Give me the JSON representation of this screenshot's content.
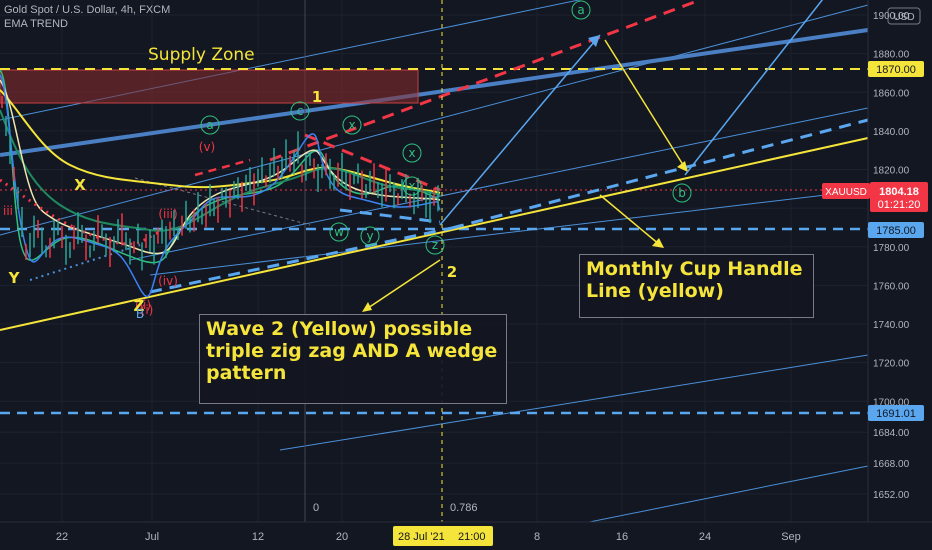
{
  "header": {
    "title": "Gold Spot / U.S. Dollar, 4h, FXCM",
    "indicator": "EMA TREND",
    "currency_badge": "USD"
  },
  "colors": {
    "background": "#131722",
    "yellow": "#f5e43a",
    "blue": "#4a90d9",
    "light_blue": "#5aa7ef",
    "red": "#f23645",
    "supply_zone": "#8b2b2b",
    "green": "#1f8a5e"
  },
  "annotations": {
    "supply_zone": "Supply Zone",
    "wave2_note": "Wave 2 (Yellow) possible triple zig zag AND A wedge pattern",
    "cup_handle_note": "Monthly Cup Handle Line (yellow)",
    "fib_zero": "0",
    "fib_786": "0.786"
  },
  "wave_labels": [
    {
      "text": "a",
      "kind": "circle"
    },
    {
      "text": "c",
      "kind": "circle"
    },
    {
      "text": "x",
      "kind": "circle"
    },
    {
      "text": "x",
      "kind": "circle"
    },
    {
      "text": "a",
      "kind": "circle"
    },
    {
      "text": "w",
      "kind": "circle"
    },
    {
      "text": "y",
      "kind": "circle"
    },
    {
      "text": "z",
      "kind": "circle"
    },
    {
      "text": "x",
      "kind": "circle"
    },
    {
      "text": "b",
      "kind": "circle"
    },
    {
      "text": "1",
      "kind": "yellow"
    },
    {
      "text": "2",
      "kind": "yellow"
    },
    {
      "text": "X",
      "kind": "yellow"
    },
    {
      "text": "Y",
      "kind": "yellow"
    },
    {
      "text": "(v)",
      "kind": "red"
    },
    {
      "text": "(iii)",
      "kind": "red"
    },
    {
      "text": "(iv)",
      "kind": "red"
    },
    {
      "text": "(ii)",
      "kind": "red"
    },
    {
      "text": "iii",
      "kind": "red"
    },
    {
      "text": "(i)",
      "kind": "red"
    },
    {
      "text": "Z",
      "kind": "yellow"
    },
    {
      "text": "B",
      "kind": "blue"
    }
  ],
  "price_badges": {
    "current": {
      "label": "XAUUSD",
      "price": "1804.18",
      "countdown": "01:21:20"
    },
    "level_1870": "1870.00",
    "level_1785": "1785.00",
    "level_1691": "1691.01"
  },
  "crosshair_date": "28 Jul '21",
  "crosshair_time": "21:00",
  "chart_data": {
    "type": "line",
    "symbol": "XAUUSD",
    "timeframe": "4h",
    "y_ticks": [
      "1900.00",
      "1880.00",
      "1860.00",
      "1840.00",
      "1820.00",
      "1800.00",
      "1780.00",
      "1760.00",
      "1740.00",
      "1720.00",
      "1700.00",
      "1684.00",
      "1668.00",
      "1652.00"
    ],
    "x_ticks": [
      "22",
      "Jul",
      "12",
      "20",
      "8",
      "16",
      "24",
      "Sep"
    ],
    "horizontal_levels": [
      1870.0,
      1785.0,
      1691.01
    ],
    "supply_zone": [
      1853,
      1870
    ],
    "current_price": 1804.18,
    "wave_path_projection": [
      1785,
      1890,
      1818,
      1910
    ],
    "price_path": [
      1855,
      1780,
      1766,
      1775,
      1790,
      1800,
      1806,
      1810,
      1814,
      1820,
      1812,
      1800,
      1803,
      1808,
      1804
    ]
  }
}
